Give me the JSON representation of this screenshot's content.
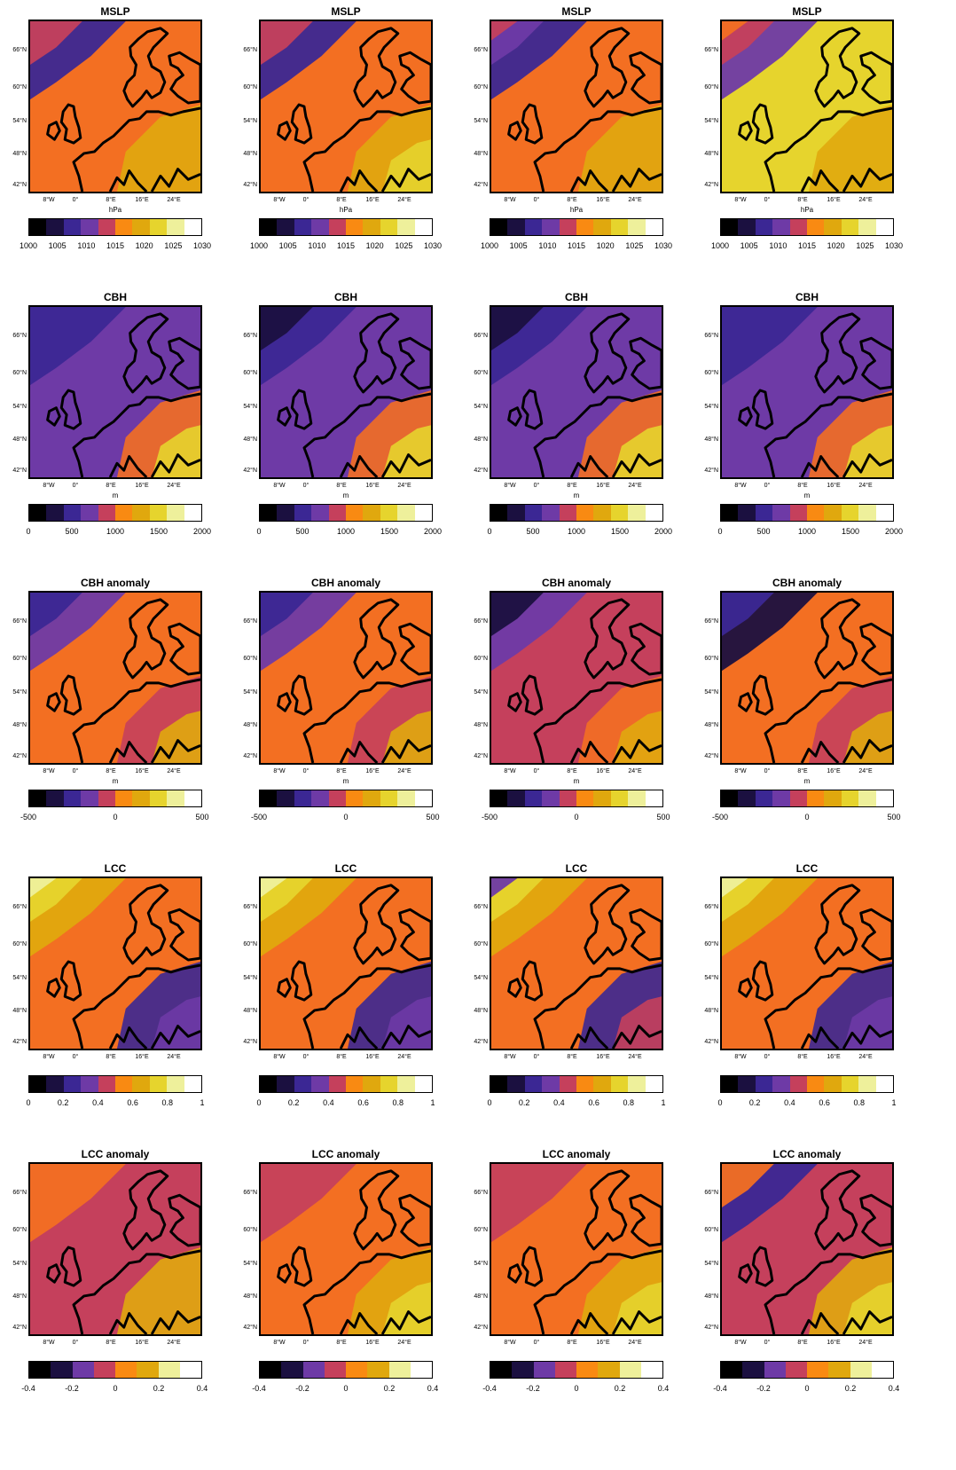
{
  "colormap": [
    "#000000",
    "#1b1040",
    "#3b2794",
    "#6e3aa6",
    "#c5405c",
    "#f36f22",
    "#f98a12",
    "#e0a80e",
    "#e6d42d",
    "#eef09b",
    "#ffffff"
  ],
  "lat_labels": [
    "66°N",
    "60°N",
    "54°N",
    "48°N",
    "42°N"
  ],
  "lon_labels": [
    "8°W",
    "0°",
    "8°E",
    "16°E",
    "24°E"
  ],
  "rows": [
    {
      "title": "MSLP",
      "unit": "hPa",
      "ticks": [
        "1000",
        "1005",
        "1010",
        "1015",
        "1020",
        "1025",
        "1030"
      ],
      "swatches": 10,
      "show_unit": [
        true,
        true,
        true,
        true
      ]
    },
    {
      "title": "CBH",
      "unit": "m",
      "ticks": [
        "0",
        "500",
        "1000",
        "1500",
        "2000"
      ],
      "swatches": 10,
      "show_unit": [
        true,
        true,
        true,
        true
      ]
    },
    {
      "title": "CBH anomaly",
      "unit": "m",
      "ticks": [
        "-500",
        "0",
        "500"
      ],
      "swatches": 10,
      "show_unit": [
        true,
        true,
        true,
        true
      ]
    },
    {
      "title": "LCC",
      "unit": "",
      "ticks": [
        "0",
        "0.2",
        "0.4",
        "0.6",
        "0.8",
        "1"
      ],
      "swatches": 10,
      "show_unit": [
        false,
        false,
        false,
        false
      ]
    },
    {
      "title": "LCC anomaly",
      "unit": "",
      "ticks": [
        "-0.4",
        "-0.2",
        "0",
        "0.2",
        "0.4"
      ],
      "swatches": 8,
      "show_unit": [
        false,
        false,
        false,
        false
      ]
    }
  ],
  "panels": [
    {
      "bg": "#f36f22",
      "bands": [
        [
          "#3b2794",
          "#c5405c"
        ],
        [
          "#e0a80e"
        ]
      ]
    },
    {
      "bg": "#f36f22",
      "bands": [
        [
          "#3b2794",
          "#c5405c"
        ],
        [
          "#e0a80e",
          "#e6d42d"
        ]
      ]
    },
    {
      "bg": "#f36f22",
      "bands": [
        [
          "#3b2794",
          "#6e3aa6",
          "#c5405c"
        ],
        [
          "#e0a80e"
        ]
      ]
    },
    {
      "bg": "#e6d42d",
      "bands": [
        [
          "#6e3aa6",
          "#c5405c",
          "#f36f22"
        ],
        [
          "#e0a80e"
        ]
      ]
    },
    {
      "bg": "#6e3aa6",
      "bands": [
        [
          "#3b2794"
        ],
        [
          "#f36f22",
          "#e6d42d"
        ]
      ]
    },
    {
      "bg": "#6e3aa6",
      "bands": [
        [
          "#3b2794",
          "#1b1040"
        ],
        [
          "#f36f22",
          "#e6d42d"
        ]
      ]
    },
    {
      "bg": "#6e3aa6",
      "bands": [
        [
          "#3b2794",
          "#1b1040"
        ],
        [
          "#f36f22",
          "#e6d42d"
        ]
      ]
    },
    {
      "bg": "#6e3aa6",
      "bands": [
        [
          "#3b2794"
        ],
        [
          "#f36f22",
          "#e6d42d"
        ]
      ]
    },
    {
      "bg": "#f36f22",
      "bands": [
        [
          "#6e3aa6",
          "#3b2794"
        ],
        [
          "#c5405c",
          "#e0a80e"
        ]
      ]
    },
    {
      "bg": "#f36f22",
      "bands": [
        [
          "#6e3aa6",
          "#3b2794"
        ],
        [
          "#c5405c",
          "#e0a80e"
        ]
      ]
    },
    {
      "bg": "#c5405c",
      "bands": [
        [
          "#6e3aa6",
          "#1b1040"
        ],
        [
          "#f36f22",
          "#e0a80e"
        ]
      ]
    },
    {
      "bg": "#f36f22",
      "bands": [
        [
          "#1b1040",
          "#3b2794"
        ],
        [
          "#c5405c",
          "#e0a80e"
        ]
      ]
    },
    {
      "bg": "#f36f22",
      "bands": [
        [
          "#e0a80e",
          "#e6d42d",
          "#eef09b"
        ],
        [
          "#3b2794",
          "#6e3aa6"
        ]
      ]
    },
    {
      "bg": "#f36f22",
      "bands": [
        [
          "#e0a80e",
          "#e6d42d",
          "#eef09b"
        ],
        [
          "#3b2794",
          "#6e3aa6"
        ]
      ]
    },
    {
      "bg": "#f36f22",
      "bands": [
        [
          "#e0a80e",
          "#e6d42d",
          "#6e3aa6"
        ],
        [
          "#3b2794",
          "#c5405c"
        ]
      ]
    },
    {
      "bg": "#f36f22",
      "bands": [
        [
          "#e0a80e",
          "#e6d42d",
          "#eef09b"
        ],
        [
          "#3b2794",
          "#6e3aa6"
        ]
      ]
    },
    {
      "bg": "#c5405c",
      "bands": [
        [
          "#f36f22"
        ],
        [
          "#e0a80e"
        ]
      ]
    },
    {
      "bg": "#f36f22",
      "bands": [
        [
          "#c5405c"
        ],
        [
          "#e0a80e",
          "#e6d42d"
        ]
      ]
    },
    {
      "bg": "#f36f22",
      "bands": [
        [
          "#c5405c"
        ],
        [
          "#e0a80e",
          "#e6d42d"
        ]
      ]
    },
    {
      "bg": "#c5405c",
      "bands": [
        [
          "#3b2794",
          "#f36f22"
        ],
        [
          "#e0a80e",
          "#e6d42d"
        ]
      ]
    }
  ]
}
